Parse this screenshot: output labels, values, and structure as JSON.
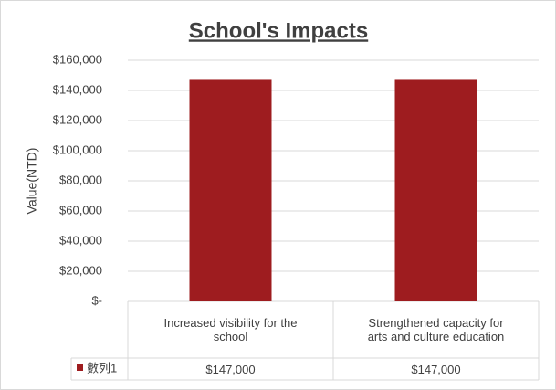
{
  "chart_data": {
    "type": "bar",
    "title": "School's Impacts",
    "y_label": "Value(NTD)",
    "categories": [
      "Increased visibility for the school",
      "Strengthened capacity for arts and culture education"
    ],
    "series": [
      {
        "name": "數列1",
        "color": "#9e1c1f",
        "values": [
          147000,
          147000
        ],
        "value_labels": [
          "$147,000",
          "$147,000"
        ]
      }
    ],
    "ylim": [
      0,
      160000
    ],
    "yticks": [
      {
        "value": 0,
        "label": "$-"
      },
      {
        "value": 20000,
        "label": "$20,000"
      },
      {
        "value": 40000,
        "label": "$40,000"
      },
      {
        "value": 60000,
        "label": "$60,000"
      },
      {
        "value": 80000,
        "label": "$80,000"
      },
      {
        "value": 100000,
        "label": "$100,000"
      },
      {
        "value": 120000,
        "label": "$120,000"
      },
      {
        "value": 140000,
        "label": "$140,000"
      },
      {
        "value": 160000,
        "label": "$160,000"
      }
    ],
    "grid": true
  }
}
